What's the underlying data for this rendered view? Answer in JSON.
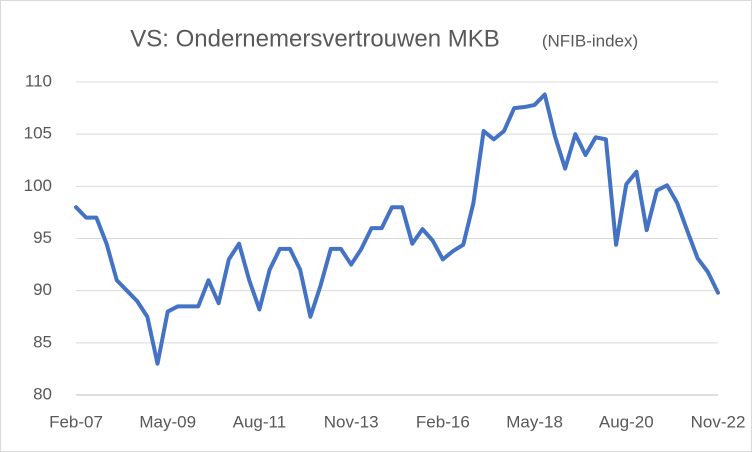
{
  "chart_data": {
    "type": "line",
    "title": "VS: Ondernemersvertrouwen MKB",
    "subtitle": "(NFIB-index)",
    "categories": [
      "Feb-07",
      null,
      null,
      null,
      null,
      null,
      null,
      null,
      null,
      "May-09",
      null,
      null,
      null,
      null,
      null,
      null,
      null,
      null,
      "Aug-11",
      null,
      null,
      null,
      null,
      null,
      null,
      null,
      null,
      "Nov-13",
      null,
      null,
      null,
      null,
      null,
      null,
      null,
      null,
      "Feb-16",
      null,
      null,
      null,
      null,
      null,
      null,
      null,
      null,
      "May-18",
      null,
      null,
      null,
      null,
      null,
      null,
      null,
      null,
      "Aug-20",
      null,
      null,
      null,
      null,
      null,
      null,
      null,
      null,
      "Nov-22"
    ],
    "values": [
      98,
      97,
      97,
      94.5,
      91,
      90,
      89,
      87.5,
      83,
      88,
      88.5,
      88.5,
      88.5,
      91,
      88.8,
      93,
      94.5,
      91,
      88.2,
      92,
      94,
      94,
      92,
      87.5,
      90.5,
      94,
      94,
      92.5,
      94,
      96,
      96,
      98,
      98,
      94.5,
      95.9,
      94.8,
      93,
      93.8,
      94.4,
      98.4,
      105.3,
      104.5,
      105.3,
      107.5,
      107.6,
      107.8,
      108.8,
      104.8,
      101.7,
      105,
      103,
      104.7,
      104.5,
      94.4,
      100.2,
      101.4,
      95.8,
      99.6,
      100.1,
      98.4,
      95.7,
      93.1,
      91.8,
      89.8
    ],
    "color": "#4472c4",
    "ylim": [
      80,
      110
    ],
    "yticks": [
      80,
      85,
      90,
      95,
      100,
      105,
      110
    ],
    "grid": true
  }
}
